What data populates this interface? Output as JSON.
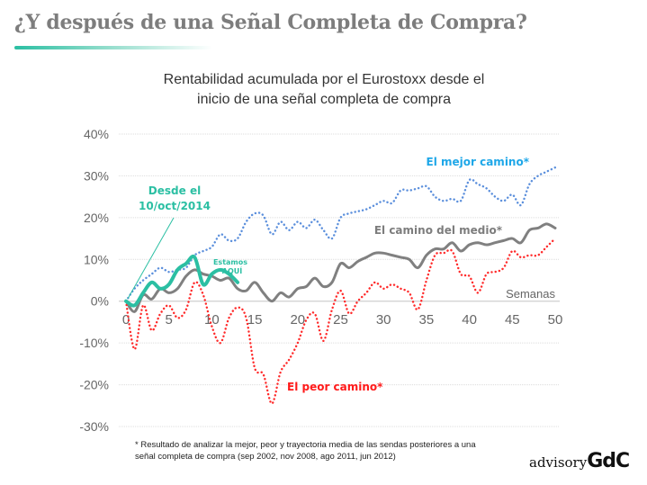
{
  "page": {
    "title": "¿Y después de una Señal Completa de Compra?",
    "footnote_line1": "* Resultado de analizar la mejor, peor y trayectoria media de las sendas posteriores a una",
    "footnote_line2": "señal completa de compra (sep 2002, nov 2008, ago 2011, jun 2012)",
    "logo_text_1": "advisory",
    "logo_text_2": "GdC"
  },
  "colors": {
    "accent": "#2bbfa3",
    "best": "#5b8fdc",
    "middle": "#808080",
    "worst": "#ff2a2a",
    "current": "#2bbfa3",
    "best_label": "#1ea7e8",
    "worst_label": "#ff1a1a",
    "axis_text": "#666666"
  },
  "chart_data": {
    "type": "line",
    "title_line1": "Rentabilidad acumulada por el Eurostoxx desde el",
    "title_line2": "inicio de una señal completa de compra",
    "xlabel": "Semanas",
    "ylabel": "",
    "xlim": [
      0,
      50
    ],
    "ylim": [
      -30,
      40
    ],
    "grid": true,
    "x_ticks": [
      0,
      5,
      10,
      15,
      20,
      25,
      30,
      35,
      40,
      45,
      50
    ],
    "x_tick_labels": [
      "0",
      "5",
      "10",
      "15",
      "20",
      "25",
      "30",
      "35",
      "40",
      "45",
      "50"
    ],
    "y_ticks": [
      40,
      30,
      20,
      10,
      0,
      -10,
      -20,
      -30
    ],
    "y_tick_labels": [
      "40%",
      "30%",
      "20%",
      "10%",
      "0%",
      "-10%",
      "-20%",
      "-30%"
    ],
    "series": [
      {
        "name": "El mejor camino*",
        "style": "dotted",
        "x": [
          0,
          1,
          2,
          3,
          4,
          5,
          6,
          7,
          8,
          9,
          10,
          11,
          12,
          13,
          14,
          15,
          16,
          17,
          18,
          19,
          20,
          21,
          22,
          23,
          24,
          25,
          26,
          27,
          28,
          29,
          30,
          31,
          32,
          33,
          34,
          35,
          36,
          37,
          38,
          39,
          40,
          41,
          42,
          43,
          44,
          45,
          46,
          47,
          48,
          49,
          50
        ],
        "values": [
          0,
          3,
          5,
          6.5,
          8,
          7,
          7.5,
          8,
          11,
          12,
          13,
          16,
          14.5,
          15,
          19,
          21,
          20.5,
          16,
          19,
          17,
          19,
          17.5,
          19.5,
          17,
          15,
          20,
          21,
          21.5,
          22,
          23,
          24,
          23.5,
          26.5,
          26.5,
          27,
          27.5,
          25,
          24,
          24.5,
          24,
          29,
          28,
          27,
          25,
          24,
          25.5,
          23,
          28,
          30,
          31,
          32
        ]
      },
      {
        "name": "El camino del medio*",
        "style": "solid",
        "x": [
          0,
          1,
          2,
          3,
          4,
          5,
          6,
          7,
          8,
          9,
          10,
          11,
          12,
          13,
          14,
          15,
          16,
          17,
          18,
          19,
          20,
          21,
          22,
          23,
          24,
          25,
          26,
          27,
          28,
          29,
          30,
          31,
          32,
          33,
          34,
          35,
          36,
          37,
          38,
          39,
          40,
          41,
          42,
          43,
          44,
          45,
          46,
          47,
          48,
          49,
          50
        ],
        "values": [
          0,
          -2.5,
          1.5,
          0.5,
          3,
          2,
          3,
          6,
          7.5,
          6.5,
          6,
          5,
          5.5,
          3,
          2.5,
          4.5,
          2,
          0,
          2,
          1,
          3,
          3.5,
          5.5,
          3.5,
          4.5,
          9,
          8,
          9.5,
          10.5,
          11.5,
          11.5,
          11,
          10.5,
          10,
          8,
          11,
          12.5,
          12.5,
          14,
          12,
          13.5,
          14,
          13.5,
          14,
          14.5,
          15,
          14,
          17,
          17.5,
          18.5,
          17.5
        ]
      },
      {
        "name": "El peor camino*",
        "style": "dotted",
        "x": [
          0,
          1,
          2,
          3,
          4,
          5,
          6,
          7,
          8,
          9,
          10,
          11,
          12,
          13,
          14,
          15,
          16,
          17,
          18,
          19,
          20,
          21,
          22,
          23,
          24,
          25,
          26,
          27,
          28,
          29,
          30,
          31,
          32,
          33,
          34,
          35,
          36,
          37,
          38,
          39,
          40,
          41,
          42,
          43,
          44,
          45,
          46,
          47,
          48,
          49,
          50
        ],
        "values": [
          0,
          -11.5,
          -1,
          -7,
          -3,
          -1,
          -4,
          -2,
          4.5,
          1.5,
          -6,
          -10,
          -4,
          -1.5,
          -4,
          -16,
          -17.5,
          -24.5,
          -17,
          -14,
          -10,
          -4.5,
          -3,
          -9.5,
          -2,
          2.5,
          -3,
          0,
          2,
          4.5,
          3,
          4,
          3,
          2,
          -2,
          5,
          11,
          11.5,
          12,
          6.5,
          6,
          2,
          6.5,
          7,
          8,
          12,
          10.5,
          11,
          11,
          13,
          15
        ]
      },
      {
        "name": "Desde el 10/oct/2014",
        "style": "solid-thick",
        "x": [
          0,
          1,
          2,
          3,
          4,
          5,
          6,
          7,
          8,
          9,
          10,
          11,
          12,
          13
        ],
        "values": [
          0,
          -1,
          2,
          4.5,
          3,
          4,
          7.5,
          9,
          10.5,
          4,
          6.5,
          7.5,
          6.5,
          4.5
        ]
      }
    ],
    "annotations": {
      "best_label": "El mejor camino*",
      "middle_label": "El camino del medio*",
      "worst_label": "El peor camino*",
      "current_label_line1": "Desde el",
      "current_label_line2": "10/oct/2014",
      "here_line1": "Estamos",
      "here_line2": "AQUÍ"
    }
  }
}
